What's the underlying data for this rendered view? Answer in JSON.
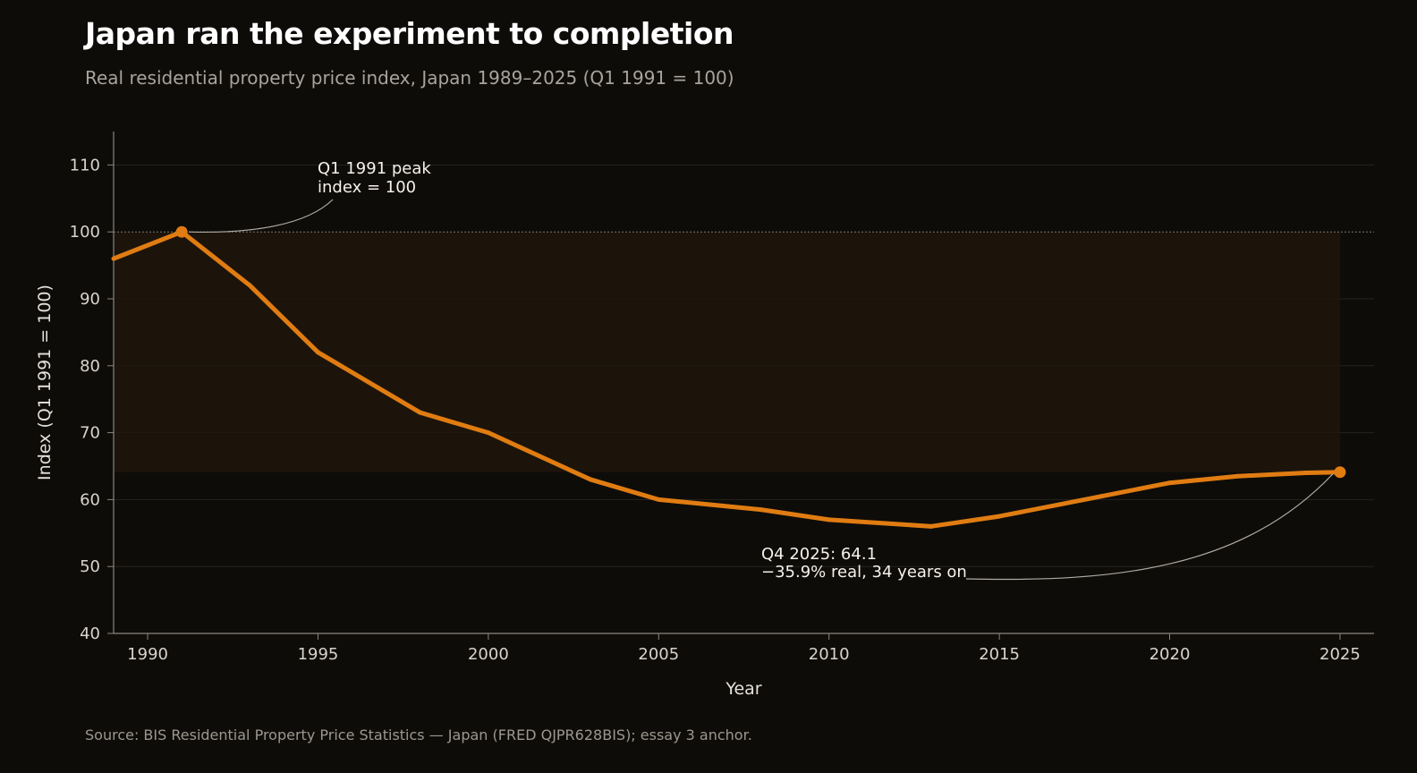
{
  "header": {
    "title": "Japan ran the experiment to completion",
    "subtitle": "Real residential property price index, Japan 1989–2025 (Q1 1991 = 100)"
  },
  "footer": {
    "source": "Source: BIS Residential Property Price Statistics — Japan (FRED QJPR628BIS); essay 3 anchor."
  },
  "colors": {
    "background": "#0e0c09",
    "line": "#e07c12",
    "fill": "#1e160c",
    "grid": "#26231f",
    "axis": "#8a857e",
    "annotation_leader": "#b0aba4"
  },
  "chart_data": {
    "type": "line",
    "xlabel": "Year",
    "ylabel": "Index (Q1 1991 = 100)",
    "xlim": [
      1989,
      2026
    ],
    "ylim": [
      40,
      115
    ],
    "x_ticks": [
      1990,
      1995,
      2000,
      2005,
      2010,
      2015,
      2020,
      2025
    ],
    "y_ticks": [
      40,
      50,
      60,
      70,
      80,
      90,
      100,
      110
    ],
    "grid": true,
    "reference_line": 100,
    "series": [
      {
        "x": [
          1989,
          1991,
          1993,
          1995,
          1998,
          2000,
          2003,
          2005,
          2008,
          2010,
          2013,
          2015,
          2018,
          2020,
          2022,
          2024,
          2025
        ],
        "y": [
          96,
          100,
          92,
          82,
          73,
          70,
          63,
          60,
          58.5,
          57,
          56,
          57.5,
          60.5,
          62.5,
          63.5,
          64,
          64.1
        ]
      }
    ],
    "annotations": [
      {
        "lines": [
          "Q1 1991 peak",
          "index = 100"
        ],
        "x": 1991,
        "y": 100
      },
      {
        "lines": [
          "Q4 2025: 64.1",
          "−35.9% real, 34 years on"
        ],
        "x": 2025,
        "y": 64.1
      }
    ]
  }
}
